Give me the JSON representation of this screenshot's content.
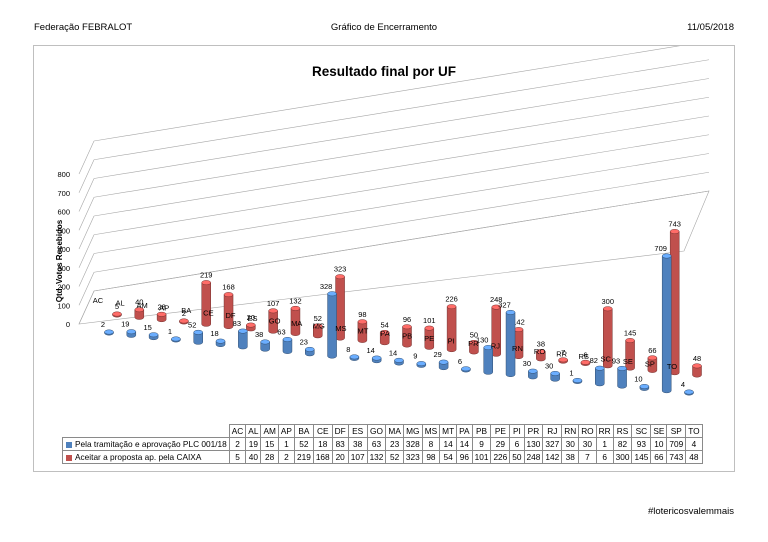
{
  "header": {
    "left": "Federação FEBRALOT",
    "center": "Gráfico de Encerramento",
    "right": "11/05/2018"
  },
  "footer": {
    "hashtag": "#lotericosvalemmais"
  },
  "colors": {
    "series1": "#4f81bd",
    "series2": "#c0504d",
    "grid": "#a6a6a6"
  },
  "chart_data": {
    "type": "bar",
    "title": "Resultado final por UF",
    "ylabel": "Qtd. Votos Recebidos",
    "xlabel": "",
    "ylim": [
      0,
      800
    ],
    "yticks": [
      "0",
      "100",
      "200",
      "300",
      "400",
      "500",
      "600",
      "700",
      "800"
    ],
    "grid": true,
    "categories": [
      "AC",
      "AL",
      "AM",
      "AP",
      "BA",
      "CE",
      "DF",
      "ES",
      "GO",
      "MA",
      "MG",
      "MS",
      "MT",
      "PA",
      "PB",
      "PE",
      "PI",
      "PR",
      "RJ",
      "RN",
      "RO",
      "RR",
      "RS",
      "SC",
      "SE",
      "SP",
      "TO"
    ],
    "series": [
      {
        "name": "Pela tramitação e aprovação PLC 001/18",
        "values": [
          2,
          19,
          15,
          1,
          52,
          18,
          83,
          38,
          63,
          23,
          328,
          8,
          14,
          14,
          9,
          29,
          6,
          130,
          327,
          30,
          30,
          1,
          82,
          93,
          10,
          709,
          4
        ]
      },
      {
        "name": "Aceitar a proposta ap. pela CAIXA",
        "values": [
          5,
          40,
          28,
          2,
          219,
          168,
          20,
          107,
          132,
          52,
          323,
          98,
          54,
          96,
          101,
          226,
          50,
          248,
          142,
          38,
          7,
          6,
          300,
          145,
          66,
          743,
          48
        ]
      }
    ]
  }
}
